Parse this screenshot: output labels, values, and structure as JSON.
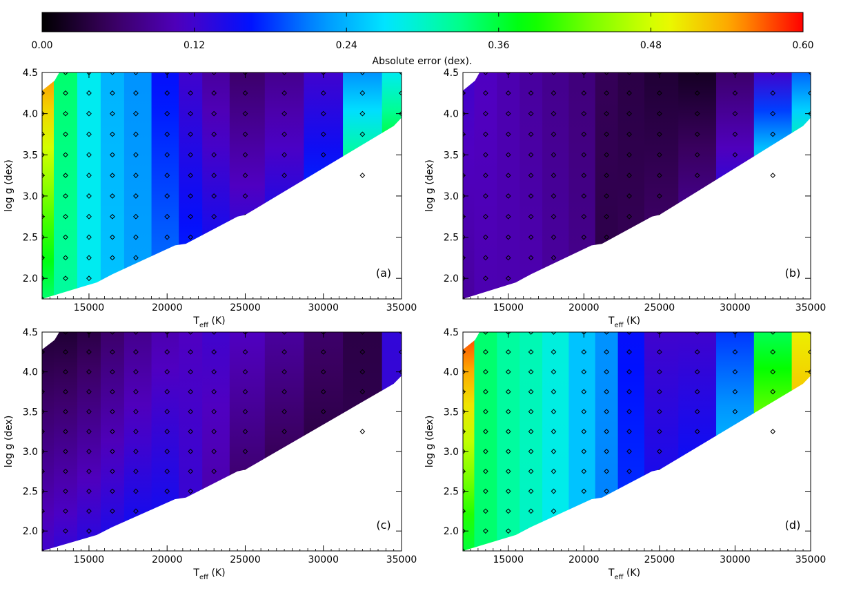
{
  "colorbar": {
    "label": "Absolute error (dex).",
    "min": 0.0,
    "max": 0.6,
    "ticks": [
      "0.00",
      "0.12",
      "0.24",
      "0.36",
      "0.48",
      "0.60"
    ],
    "colormap": [
      "#000000",
      "#3a0060",
      "#5000c0",
      "#0010ff",
      "#0090ff",
      "#00e8ff",
      "#00ff90",
      "#00ff00",
      "#80ff00",
      "#e8ff00",
      "#ffa000",
      "#ff0000"
    ]
  },
  "axes": {
    "xlabel_main": "T",
    "xlabel_sub": "eff",
    "xlabel_unit": " (K)",
    "ylabel": "log g (dex)",
    "xlim": [
      12000,
      35000
    ],
    "ylim": [
      1.75,
      4.5
    ],
    "xticks": [
      15000,
      20000,
      25000,
      30000,
      35000
    ],
    "yticks": [
      2.0,
      2.5,
      3.0,
      3.5,
      4.0,
      4.5
    ],
    "xtick_labels": [
      "15000",
      "20000",
      "25000",
      "30000",
      "35000"
    ],
    "ytick_labels": [
      "2.0",
      "2.5",
      "3.0",
      "3.5",
      "4.0",
      "4.5"
    ]
  },
  "chart_data": [
    {
      "type": "heatmap",
      "panel": "(a)",
      "description_values": "error by column (Teff) from low to high",
      "teff": [
        12000,
        13500,
        15000,
        16500,
        18000,
        20000,
        21500,
        23000,
        25000,
        27500,
        30000,
        32500,
        35000
      ],
      "error_low_logg": [
        0.34,
        0.32,
        0.28,
        0.25,
        0.23,
        0.21,
        0.18,
        0.17,
        0.16,
        0.18,
        0.22,
        0.5,
        0.55
      ],
      "error_high_logg": [
        0.55,
        0.34,
        0.28,
        0.24,
        0.22,
        0.16,
        0.12,
        0.09,
        0.06,
        0.08,
        0.12,
        0.22,
        0.28
      ]
    },
    {
      "type": "heatmap",
      "panel": "(b)",
      "teff": [
        12000,
        13500,
        15000,
        16500,
        18000,
        20000,
        21500,
        23000,
        25000,
        27500,
        30000,
        32500,
        35000
      ],
      "error_low_logg": [
        0.09,
        0.1,
        0.1,
        0.1,
        0.09,
        0.08,
        0.04,
        0.05,
        0.07,
        0.12,
        0.2,
        0.5,
        0.55
      ],
      "error_high_logg": [
        0.12,
        0.11,
        0.1,
        0.09,
        0.08,
        0.07,
        0.05,
        0.04,
        0.03,
        0.02,
        0.06,
        0.12,
        0.2
      ]
    },
    {
      "type": "heatmap",
      "panel": "(c)",
      "teff": [
        12000,
        13500,
        15000,
        16500,
        18000,
        20000,
        21500,
        23000,
        25000,
        27500,
        30000,
        32500,
        35000
      ],
      "error_low_logg": [
        0.12,
        0.13,
        0.14,
        0.15,
        0.16,
        0.16,
        0.13,
        0.09,
        0.04,
        0.02,
        0.02,
        0.05,
        0.12
      ],
      "error_high_logg": [
        0.03,
        0.03,
        0.04,
        0.06,
        0.08,
        0.1,
        0.11,
        0.12,
        0.11,
        0.09,
        0.06,
        0.04,
        0.13
      ]
    },
    {
      "type": "heatmap",
      "panel": "(d)",
      "teff": [
        12000,
        13500,
        15000,
        16500,
        18000,
        20000,
        21500,
        23000,
        25000,
        27500,
        30000,
        32500,
        35000
      ],
      "error_low_logg": [
        0.36,
        0.34,
        0.32,
        0.3,
        0.28,
        0.25,
        0.21,
        0.18,
        0.16,
        0.18,
        0.3,
        0.55,
        0.58
      ],
      "error_high_logg": [
        0.58,
        0.34,
        0.32,
        0.31,
        0.29,
        0.25,
        0.22,
        0.16,
        0.12,
        0.12,
        0.18,
        0.35,
        0.5
      ]
    }
  ],
  "grid_points": {
    "teff": [
      12000,
      13500,
      15000,
      16500,
      18000,
      20000,
      21500,
      23000,
      25000,
      27500,
      30000,
      32500,
      35000
    ],
    "logg": [
      1.75,
      2.0,
      2.25,
      2.5,
      2.75,
      3.0,
      3.25,
      3.5,
      3.75,
      4.0,
      4.25,
      4.5
    ]
  },
  "boundary": {
    "note": "lower-right region uncovered (white); points along the lower envelope in (Teff, logg)",
    "edge": [
      [
        12000,
        1.75
      ],
      [
        15500,
        1.95
      ],
      [
        16500,
        2.05
      ],
      [
        20500,
        2.4
      ],
      [
        21200,
        2.42
      ],
      [
        24500,
        2.75
      ],
      [
        25000,
        2.77
      ],
      [
        34500,
        3.85
      ],
      [
        35000,
        3.95
      ]
    ],
    "top_left_notch": [
      [
        12000,
        4.28
      ],
      [
        12800,
        4.4
      ],
      [
        13100,
        4.5
      ]
    ]
  }
}
